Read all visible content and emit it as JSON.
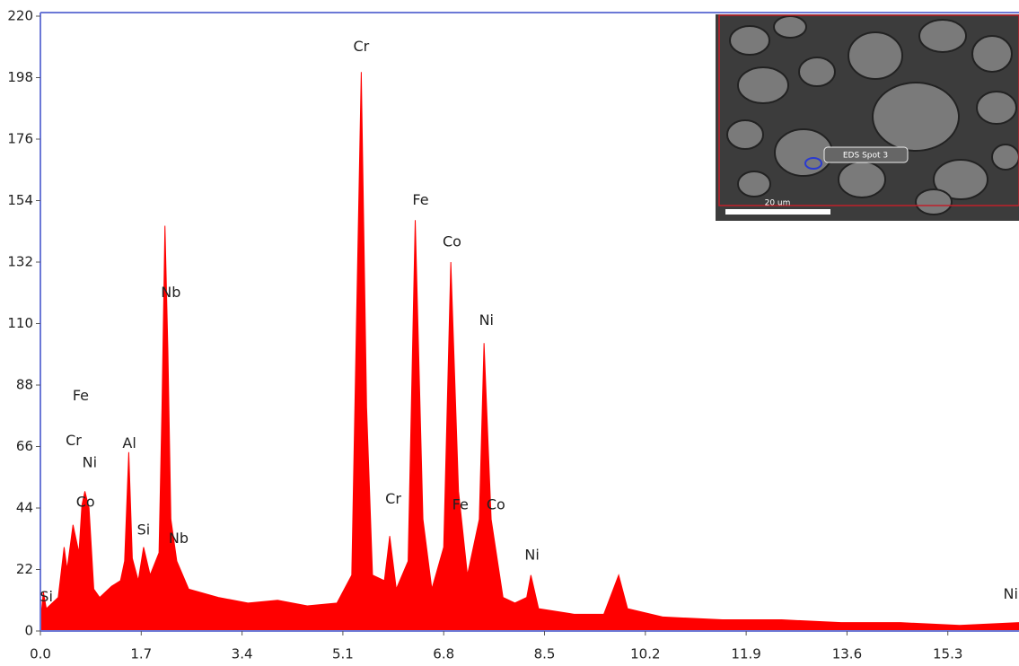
{
  "chart_data": {
    "type": "area",
    "color": "#ff0000",
    "xlim": [
      0,
      16.5
    ],
    "ylim": [
      0,
      220
    ],
    "xticks": [
      {
        "value": 0,
        "label": "0.0"
      },
      1.7,
      3.4,
      5.1,
      6.8,
      8.5,
      10.2,
      11.9,
      13.6,
      15.3
    ],
    "yticks": [
      0,
      22,
      44,
      66,
      88,
      110,
      132,
      154,
      176,
      198,
      220
    ],
    "x": [
      0.0,
      0.05,
      0.1,
      0.3,
      0.4,
      0.45,
      0.55,
      0.65,
      0.7,
      0.75,
      0.82,
      0.9,
      1.0,
      1.2,
      1.35,
      1.42,
      1.49,
      1.55,
      1.65,
      1.74,
      1.85,
      2.0,
      2.05,
      2.1,
      2.15,
      2.2,
      2.3,
      2.5,
      3.0,
      3.5,
      4.0,
      4.5,
      5.0,
      5.25,
      5.32,
      5.41,
      5.5,
      5.6,
      5.8,
      5.89,
      6.0,
      6.2,
      6.32,
      6.45,
      6.6,
      6.8,
      6.92,
      7.05,
      7.2,
      7.4,
      7.48,
      7.6,
      7.8,
      8.0,
      8.2,
      8.27,
      8.4,
      9.0,
      9.5,
      9.75,
      9.9,
      10.5,
      11.5,
      12.5,
      13.5,
      14.5,
      15.5,
      16.5
    ],
    "values": [
      3,
      14,
      8,
      12,
      30,
      22,
      38,
      28,
      45,
      50,
      44,
      15,
      12,
      16,
      18,
      25,
      64,
      26,
      18,
      30,
      20,
      28,
      80,
      145,
      100,
      40,
      25,
      15,
      12,
      10,
      11,
      9,
      10,
      20,
      100,
      200,
      80,
      20,
      18,
      34,
      15,
      25,
      147,
      40,
      15,
      30,
      132,
      50,
      20,
      40,
      103,
      40,
      12,
      10,
      12,
      20,
      8,
      6,
      6,
      20,
      8,
      5,
      4,
      4,
      3,
      3,
      2,
      3
    ],
    "annotations": [
      {
        "text": "Si",
        "x": 0.1,
        "y": 12
      },
      {
        "text": "Cr",
        "x": 0.56,
        "y": 68
      },
      {
        "text": "Fe",
        "x": 0.68,
        "y": 84
      },
      {
        "text": "Ni",
        "x": 0.83,
        "y": 60
      },
      {
        "text": "Co",
        "x": 0.76,
        "y": 46
      },
      {
        "text": "Al",
        "x": 1.5,
        "y": 67
      },
      {
        "text": "Si",
        "x": 1.74,
        "y": 36
      },
      {
        "text": "Nb",
        "x": 2.2,
        "y": 121
      },
      {
        "text": "Nb",
        "x": 2.33,
        "y": 33
      },
      {
        "text": "Cr",
        "x": 5.41,
        "y": 209
      },
      {
        "text": "Cr",
        "x": 5.95,
        "y": 47
      },
      {
        "text": "Fe",
        "x": 6.41,
        "y": 154
      },
      {
        "text": "Co",
        "x": 6.94,
        "y": 139
      },
      {
        "text": "Fe",
        "x": 7.08,
        "y": 45
      },
      {
        "text": "Ni",
        "x": 7.52,
        "y": 111
      },
      {
        "text": "Co",
        "x": 7.68,
        "y": 45
      },
      {
        "text": "Ni",
        "x": 8.29,
        "y": 27
      },
      {
        "text": "Ni",
        "x": 16.36,
        "y": 13
      }
    ],
    "inset": {
      "spot_label": "EDS Spot 3",
      "scale_label": "20 um"
    }
  }
}
